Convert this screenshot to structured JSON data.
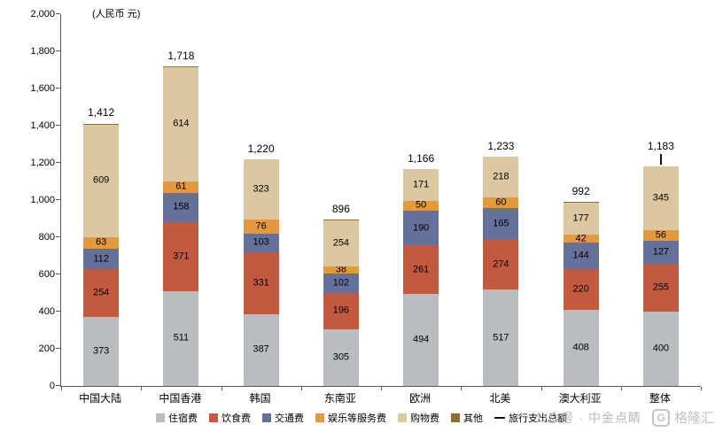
{
  "chart_data": {
    "type": "bar",
    "stacked": true,
    "unit_label": "(人民币 元)",
    "categories": [
      "中国大陆",
      "中国香港",
      "韩国",
      "东南亚",
      "欧洲",
      "北美",
      "澳大利亚",
      "整体"
    ],
    "series": [
      {
        "key": "accommodation",
        "name": "住宿费",
        "color": "#b9bcc1",
        "values": [
          373,
          511,
          387,
          305,
          494,
          517,
          408,
          400
        ]
      },
      {
        "key": "food",
        "name": "饮食费",
        "color": "#c35a40",
        "values": [
          254,
          371,
          331,
          196,
          261,
          274,
          220,
          255
        ]
      },
      {
        "key": "transport",
        "name": "交通费",
        "color": "#66719b",
        "values": [
          112,
          158,
          103,
          102,
          190,
          165,
          144,
          127
        ]
      },
      {
        "key": "entertainment-services",
        "name": "娱乐等服务费",
        "color": "#e3993c",
        "values": [
          63,
          61,
          76,
          38,
          50,
          60,
          42,
          56
        ]
      },
      {
        "key": "shopping",
        "name": "购物费",
        "color": "#dcc8a0",
        "values": [
          609,
          614,
          323,
          254,
          171,
          218,
          177,
          345
        ]
      },
      {
        "key": "other",
        "name": "其他",
        "color": "#8e7033",
        "values": [
          1,
          3,
          0,
          1,
          0,
          0,
          1,
          0
        ]
      }
    ],
    "totals": {
      "name": "旅行支出总额",
      "values": [
        1412,
        1718,
        1220,
        896,
        1166,
        1233,
        992,
        1183
      ],
      "display": [
        "1,412",
        "1,718",
        "1,220",
        "896",
        "1,166",
        "1,233",
        "992",
        "1,183"
      ],
      "marker": [
        false,
        false,
        false,
        false,
        false,
        false,
        false,
        true
      ],
      "color": "#111111"
    },
    "ylim": [
      0,
      2000
    ],
    "ytick_step": 200,
    "yticks": [
      "0",
      "200",
      "400",
      "600",
      "800",
      "1,000",
      "1,200",
      "1,400",
      "1,600",
      "1,800",
      "2,000"
    ],
    "grid": false,
    "legend_position": "bottom"
  },
  "watermark": {
    "caption": "公众号 · 中金点睛",
    "logo_glyph": "G",
    "logo_text": "格隆汇"
  }
}
